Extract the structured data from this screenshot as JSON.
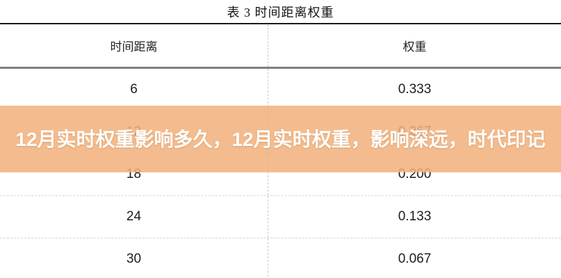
{
  "page": {
    "title": "表 3 时间距离权重"
  },
  "table": {
    "columns": [
      "时间距离",
      "权重"
    ],
    "rows": [
      [
        "6",
        "0.333"
      ],
      [
        "12",
        "0.267"
      ],
      [
        "18",
        "0.200"
      ],
      [
        "24",
        "0.133"
      ],
      [
        "30",
        "0.067"
      ]
    ]
  },
  "overlay": {
    "text": "12月实时权重影响多久，12月实时权重，影响深远，时代印记",
    "background_color": "#f2b07a",
    "text_color": "#ffffff"
  },
  "chart_data": {
    "type": "table",
    "title": "表 3 时间距离权重",
    "columns": [
      "时间距离",
      "权重"
    ],
    "x": [
      6,
      12,
      18,
      24,
      30
    ],
    "values": [
      0.333,
      0.267,
      0.2,
      0.133,
      0.067
    ],
    "xlabel": "时间距离",
    "ylabel": "权重"
  }
}
